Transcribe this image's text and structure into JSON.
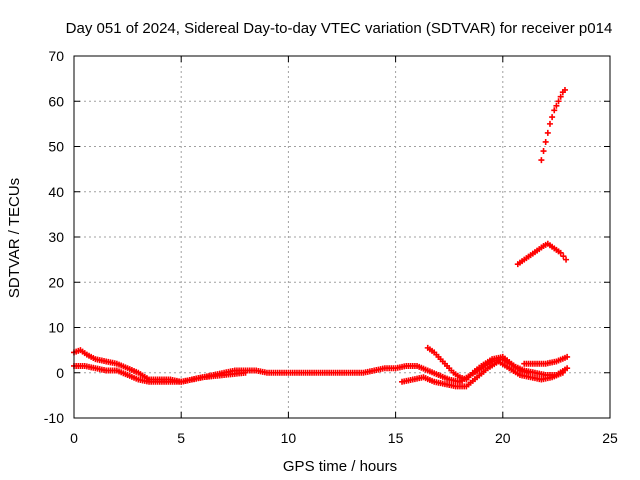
{
  "chart_data": {
    "type": "scatter",
    "title": "Day 051 of 2024, Sidereal Day-to-day VTEC variation (SDTVAR) for receiver p014",
    "xlabel": "GPS time / hours",
    "ylabel": "SDTVAR / TECUs",
    "xlim": [
      0,
      25
    ],
    "ylim": [
      -10,
      70
    ],
    "xticks": [
      "0",
      "5",
      "10",
      "15",
      "20",
      "25"
    ],
    "yticks": [
      "-10",
      "0",
      "10",
      "20",
      "30",
      "40",
      "50",
      "60",
      "70"
    ],
    "grid": true,
    "legend": "none",
    "color": "#ff0000",
    "series": [
      {
        "points": [
          [
            0.0,
            4.5
          ],
          [
            0.3,
            5.0
          ],
          [
            0.6,
            4.0
          ],
          [
            1.0,
            3.0
          ],
          [
            1.5,
            2.5
          ],
          [
            2.0,
            2.0
          ],
          [
            2.5,
            1.0
          ],
          [
            3.0,
            0.0
          ],
          [
            3.5,
            -1.5
          ],
          [
            4.0,
            -1.5
          ],
          [
            4.5,
            -1.5
          ],
          [
            5.0,
            -2.0
          ],
          [
            5.5,
            -1.5
          ],
          [
            6.0,
            -1.0
          ],
          [
            6.5,
            -0.5
          ],
          [
            7.0,
            0.0
          ],
          [
            7.5,
            0.5
          ],
          [
            8.0,
            0.5
          ],
          [
            8.5,
            0.5
          ],
          [
            9.0,
            0.0
          ],
          [
            9.5,
            0.0
          ],
          [
            10.0,
            0.0
          ],
          [
            10.5,
            0.0
          ],
          [
            11.0,
            0.0
          ],
          [
            11.5,
            0.0
          ],
          [
            12.0,
            0.0
          ],
          [
            12.5,
            0.0
          ],
          [
            13.0,
            0.0
          ],
          [
            13.5,
            0.0
          ],
          [
            14.0,
            0.5
          ],
          [
            14.5,
            1.0
          ],
          [
            15.0,
            1.0
          ],
          [
            15.5,
            1.5
          ],
          [
            16.0,
            1.5
          ],
          [
            16.5,
            0.5
          ],
          [
            17.0,
            -0.5
          ],
          [
            17.5,
            -1.5
          ],
          [
            18.0,
            -2.0
          ],
          [
            18.5,
            -0.5
          ],
          [
            19.0,
            1.0
          ],
          [
            19.5,
            2.5
          ],
          [
            20.0,
            3.0
          ],
          [
            20.5,
            1.5
          ],
          [
            21.0,
            0.5
          ],
          [
            21.5,
            0.0
          ],
          [
            22.0,
            -0.5
          ],
          [
            22.5,
            -0.5
          ],
          [
            23.0,
            1.0
          ]
        ]
      },
      {
        "points": [
          [
            0.0,
            1.5
          ],
          [
            0.5,
            1.5
          ],
          [
            1.0,
            1.0
          ],
          [
            1.5,
            0.5
          ],
          [
            2.0,
            0.5
          ],
          [
            2.5,
            -0.5
          ],
          [
            3.0,
            -1.5
          ],
          [
            3.5,
            -2.0
          ],
          [
            4.0,
            -2.0
          ],
          [
            4.5,
            -2.0
          ],
          [
            5.0,
            -2.0
          ],
          [
            5.5,
            -1.5
          ],
          [
            6.0,
            -1.0
          ],
          [
            7.0,
            -0.5
          ],
          [
            8.0,
            0.0
          ]
        ]
      },
      {
        "points": [
          [
            15.3,
            -2.0
          ],
          [
            15.8,
            -1.5
          ],
          [
            16.3,
            -1.0
          ],
          [
            16.8,
            -2.0
          ],
          [
            17.3,
            -2.5
          ],
          [
            17.8,
            -3.0
          ],
          [
            18.3,
            -3.0
          ],
          [
            18.8,
            -1.0
          ],
          [
            19.3,
            1.0
          ],
          [
            19.8,
            2.5
          ],
          [
            20.3,
            1.0
          ],
          [
            20.8,
            -0.5
          ],
          [
            21.3,
            -1.0
          ],
          [
            21.8,
            -1.5
          ],
          [
            22.3,
            -1.0
          ],
          [
            22.8,
            0.0
          ]
        ]
      },
      {
        "points": [
          [
            16.5,
            5.5
          ],
          [
            16.8,
            4.5
          ],
          [
            17.1,
            3.0
          ],
          [
            17.4,
            1.5
          ],
          [
            17.7,
            0.0
          ],
          [
            18.0,
            -1.0
          ],
          [
            18.3,
            -1.5
          ],
          [
            18.6,
            0.0
          ],
          [
            19.0,
            1.5
          ],
          [
            19.5,
            3.0
          ],
          [
            20.0,
            3.5
          ],
          [
            20.4,
            2.0
          ],
          [
            20.8,
            0.5
          ],
          [
            21.2,
            0.0
          ]
        ]
      },
      {
        "points": [
          [
            21.0,
            2.0
          ],
          [
            21.5,
            2.0
          ],
          [
            22.0,
            2.0
          ],
          [
            22.5,
            2.5
          ],
          [
            23.0,
            3.5
          ]
        ]
      },
      {
        "points": [
          [
            20.7,
            24.0
          ],
          [
            21.0,
            25.0
          ],
          [
            21.3,
            26.0
          ],
          [
            21.6,
            27.0
          ],
          [
            21.9,
            28.0
          ],
          [
            22.1,
            28.5
          ],
          [
            22.4,
            27.5
          ],
          [
            22.7,
            26.5
          ],
          [
            22.95,
            25.0
          ]
        ]
      },
      {
        "points": [
          [
            21.8,
            47.0
          ],
          [
            21.9,
            49.0
          ],
          [
            22.0,
            51.0
          ],
          [
            22.1,
            53.0
          ],
          [
            22.2,
            55.0
          ],
          [
            22.3,
            56.5
          ],
          [
            22.4,
            58.0
          ],
          [
            22.5,
            59.0
          ],
          [
            22.6,
            60.0
          ],
          [
            22.7,
            61.0
          ],
          [
            22.8,
            62.0
          ],
          [
            22.9,
            62.5
          ]
        ]
      }
    ]
  }
}
